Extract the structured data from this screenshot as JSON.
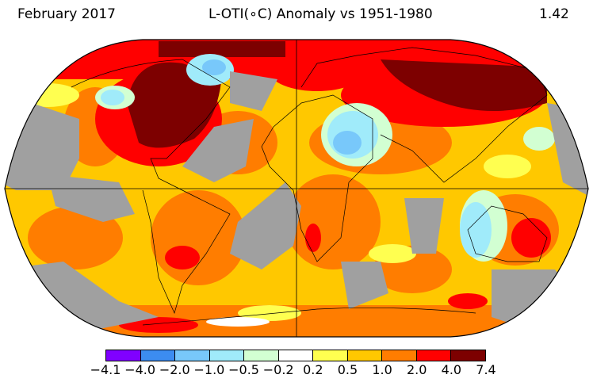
{
  "header": {
    "date": "February 2017",
    "title": "L-OTI(∘C) Anomaly vs 1951-1980",
    "global_mean": "1.42"
  },
  "colorbar": {
    "ticks": [
      "−4.1",
      "−4.0",
      "−2.0",
      "−1.0",
      "−0.5",
      "−0.2",
      "0.2",
      "0.5",
      "1.0",
      "2.0",
      "4.0",
      "7.4"
    ],
    "colors": [
      "#8000ff",
      "#3c8cf0",
      "#78c8fa",
      "#a0ebfa",
      "#d2ffd2",
      "#ffffff",
      "#ffff50",
      "#ffc800",
      "#ff7d00",
      "#ff0000",
      "#7d0000"
    ],
    "missing_color": "#a0a0a0"
  }
}
